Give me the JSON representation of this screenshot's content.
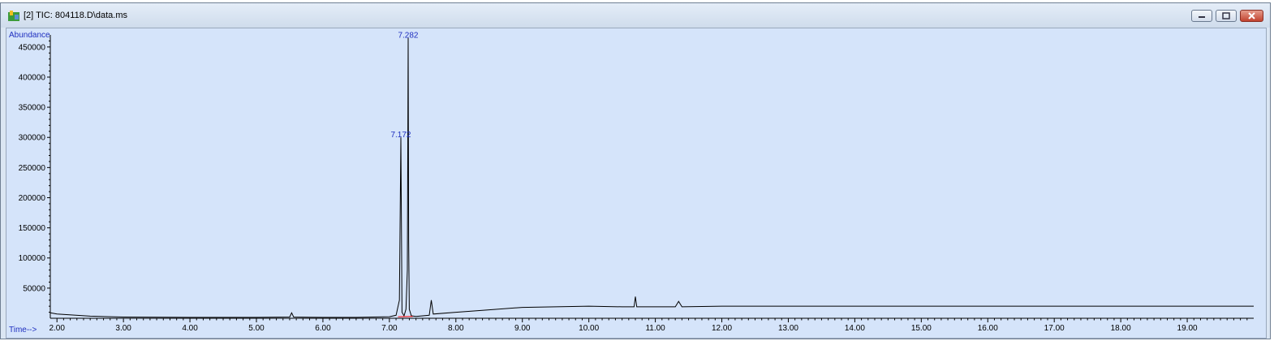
{
  "window": {
    "title": "[2] TIC: 804118.D\\data.ms",
    "app_icon": "chemstation-icon",
    "buttons": [
      "minimize",
      "maximize",
      "close"
    ]
  },
  "colors": {
    "axis_text": "#1f2fbf",
    "trace": "#000000",
    "baseline": "#ff0000",
    "plot_bg": "#d5e4fa"
  },
  "chart_data": {
    "type": "line",
    "title": "",
    "ylabel": "Abundance",
    "xlabel": "Time-->",
    "xlim": [
      1.9,
      20.0
    ],
    "ylim": [
      0,
      470000
    ],
    "x_ticks": [
      "2.00",
      "3.00",
      "4.00",
      "5.00",
      "6.00",
      "7.00",
      "8.00",
      "9.00",
      "10.00",
      "11.00",
      "12.00",
      "13.00",
      "14.00",
      "15.00",
      "16.00",
      "17.00",
      "18.00",
      "19.00"
    ],
    "y_ticks": [
      "50000",
      "100000",
      "150000",
      "200000",
      "250000",
      "300000",
      "350000",
      "400000",
      "450000"
    ],
    "peak_labels": [
      {
        "text": "7.282",
        "x": 7.282,
        "y": 465000
      },
      {
        "text": "7.172",
        "x": 7.172,
        "y": 300000
      }
    ],
    "series": [
      {
        "x": [
          1.9,
          2.0,
          2.5,
          3.0,
          4.0,
          5.0,
          5.5,
          5.53,
          5.56,
          6.0,
          6.5,
          7.0,
          7.1,
          7.15,
          7.172,
          7.19,
          7.22,
          7.25,
          7.27,
          7.282,
          7.29,
          7.3,
          7.33,
          7.4,
          7.6,
          7.63,
          7.66,
          8.0,
          8.5,
          9.0,
          9.5,
          10.0,
          10.5,
          10.68,
          10.7,
          10.72,
          11.0,
          11.3,
          11.35,
          11.4,
          12.0,
          13.0,
          14.0,
          15.0,
          16.0,
          17.0,
          18.0,
          19.0,
          20.0
        ],
        "y": [
          9000,
          7000,
          3500,
          2000,
          1500,
          1500,
          2000,
          9000,
          2000,
          1500,
          1500,
          2500,
          5000,
          30000,
          300000,
          10000,
          4000,
          15000,
          80000,
          465000,
          130000,
          15000,
          4000,
          3000,
          5000,
          30000,
          7000,
          10000,
          14000,
          18000,
          19000,
          20000,
          19000,
          19000,
          36000,
          19000,
          19000,
          19000,
          28000,
          19000,
          20000,
          20000,
          20000,
          20000,
          20000,
          20000,
          20000,
          20000,
          20000
        ]
      }
    ]
  }
}
